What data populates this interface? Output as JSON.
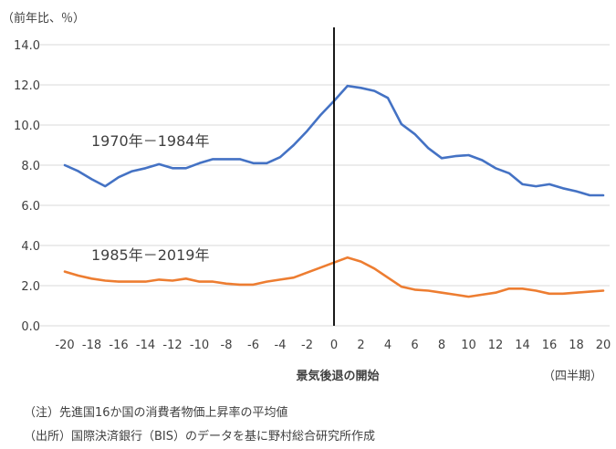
{
  "chart_data": {
    "type": "line",
    "unit_label": "（前年比、％）",
    "xlabel": "景気後退の開始",
    "x_unit_label": "（四半期）",
    "x": [
      -20,
      -19,
      -18,
      -17,
      -16,
      -15,
      -14,
      -13,
      -12,
      -11,
      -10,
      -9,
      -8,
      -7,
      -6,
      -5,
      -4,
      -3,
      -2,
      -1,
      0,
      1,
      2,
      3,
      4,
      5,
      6,
      7,
      8,
      9,
      10,
      11,
      12,
      13,
      14,
      15,
      16,
      17,
      18,
      19,
      20
    ],
    "xticks": [
      -20,
      -18,
      -16,
      -14,
      -12,
      -10,
      -8,
      -6,
      -4,
      -2,
      0,
      2,
      4,
      6,
      8,
      10,
      12,
      14,
      16,
      18,
      20
    ],
    "ylim": [
      0,
      14
    ],
    "yticks": [
      0,
      2,
      4,
      6,
      8,
      10,
      12,
      14
    ],
    "ytick_labels": [
      "0.0",
      "2.0",
      "4.0",
      "6.0",
      "8.0",
      "10.0",
      "12.0",
      "14.0"
    ],
    "grid": "horizontal",
    "vline_x": 0,
    "series": [
      {
        "name": "1970年－1984年",
        "color": "#4472C4",
        "values": [
          8.0,
          7.7,
          7.3,
          6.95,
          7.4,
          7.7,
          7.85,
          8.05,
          7.85,
          7.85,
          8.1,
          8.3,
          8.3,
          8.3,
          8.1,
          8.1,
          8.4,
          9.0,
          9.7,
          10.5,
          11.2,
          11.95,
          11.85,
          11.7,
          11.35,
          10.05,
          9.55,
          8.85,
          8.35,
          8.45,
          8.5,
          8.25,
          7.85,
          7.6,
          7.05,
          6.95,
          7.05,
          6.85,
          6.7,
          6.5,
          6.5
        ]
      },
      {
        "name": "1985年－2019年",
        "color": "#ED7D31",
        "values": [
          2.7,
          2.5,
          2.35,
          2.25,
          2.2,
          2.2,
          2.2,
          2.3,
          2.25,
          2.35,
          2.2,
          2.2,
          2.1,
          2.05,
          2.05,
          2.2,
          2.3,
          2.4,
          2.65,
          2.9,
          3.15,
          3.4,
          3.2,
          2.85,
          2.4,
          1.95,
          1.8,
          1.75,
          1.65,
          1.55,
          1.45,
          1.55,
          1.65,
          1.85,
          1.85,
          1.75,
          1.6,
          1.6,
          1.65,
          1.7,
          1.75
        ]
      }
    ]
  },
  "notes": {
    "line1": "（注）先進国16か国の消費者物価上昇率の平均値",
    "line2": "（出所）国際決済銀行（BIS）のデータを基に野村総合研究所作成"
  }
}
